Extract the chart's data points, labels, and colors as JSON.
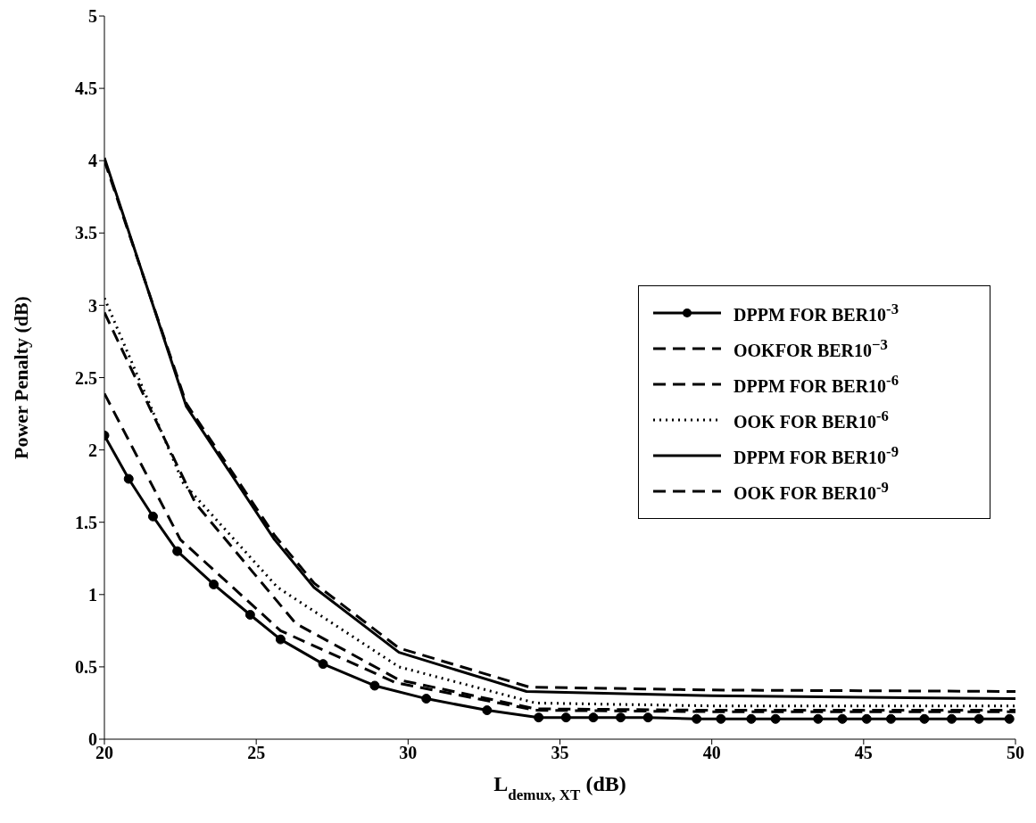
{
  "chart_data": {
    "type": "line",
    "xlabel": "L$_{demux, XT}$ (dB)",
    "ylabel": "Power Penalty (dB)",
    "xlim": [
      20,
      50
    ],
    "xticks": [
      20,
      25,
      30,
      35,
      40,
      45,
      50
    ],
    "ylim": [
      0,
      5
    ],
    "yticks": [
      0,
      0.5,
      1,
      1.5,
      2,
      2.5,
      3,
      3.5,
      4,
      4.5,
      5
    ],
    "legend": "right",
    "series": [
      {
        "name": "DPPM FOR BER10$^{-3}$",
        "color": "#000000",
        "line_style": "solid",
        "marker": "circle",
        "x": [
          20,
          20.8,
          21.6,
          22.4,
          23.6,
          24.8,
          25.8,
          27.2,
          28.9,
          30.6,
          32.6,
          34.3,
          35.2,
          36.1,
          37,
          37.9,
          39.5,
          40.3,
          41.3,
          42.1,
          43.5,
          44.3,
          45.1,
          45.9,
          47,
          47.9,
          48.8,
          49.8
        ],
        "values": [
          2.1,
          1.8,
          1.54,
          1.3,
          1.07,
          0.86,
          0.69,
          0.52,
          0.37,
          0.28,
          0.2,
          0.15,
          0.15,
          0.15,
          0.15,
          0.15,
          0.14,
          0.14,
          0.14,
          0.14,
          0.14,
          0.14,
          0.14,
          0.14,
          0.14,
          0.14,
          0.14,
          0.14
        ]
      },
      {
        "name": "OOKFOR BER10$^{−3}$",
        "color": "#000000",
        "line_style": "dashed",
        "marker": "none",
        "x": [
          20,
          22.5,
          25.8,
          29.6,
          34.2,
          40,
          50
        ],
        "values": [
          2.39,
          1.38,
          0.75,
          0.39,
          0.2,
          0.19,
          0.19
        ]
      },
      {
        "name": "DPPM FOR BER10$^{-6}$",
        "color": "#000000",
        "line_style": "dashed",
        "marker": "none",
        "x": [
          20,
          21.7,
          23,
          26.3,
          29.7,
          34.2,
          40,
          50
        ],
        "values": [
          2.95,
          2.2,
          1.63,
          0.8,
          0.41,
          0.21,
          0.2,
          0.2
        ]
      },
      {
        "name": "OOK FOR BER10$^{-6}$",
        "color": "#000000",
        "line_style": "dotted",
        "marker": "none",
        "x": [
          20,
          22.6,
          25.7,
          29.7,
          34.2,
          40,
          50
        ],
        "values": [
          3.05,
          1.77,
          1.05,
          0.5,
          0.25,
          0.23,
          0.23
        ]
      },
      {
        "name": "DPPM FOR BER10$^{-9}$",
        "color": "#000000",
        "line_style": "solid",
        "marker": "none",
        "x": [
          20,
          22.7,
          25.6,
          26.9,
          29.7,
          33.9,
          40,
          50
        ],
        "values": [
          4.02,
          2.3,
          1.38,
          1.05,
          0.6,
          0.33,
          0.3,
          0.28
        ]
      },
      {
        "name": "OOK FOR BER10$^{-9}$",
        "color": "#000000",
        "line_style": "dashed",
        "marker": "none",
        "x": [
          20,
          22.7,
          25.6,
          26.9,
          29.7,
          34,
          40,
          50
        ],
        "values": [
          4.0,
          2.32,
          1.41,
          1.08,
          0.63,
          0.36,
          0.34,
          0.33
        ]
      }
    ]
  }
}
